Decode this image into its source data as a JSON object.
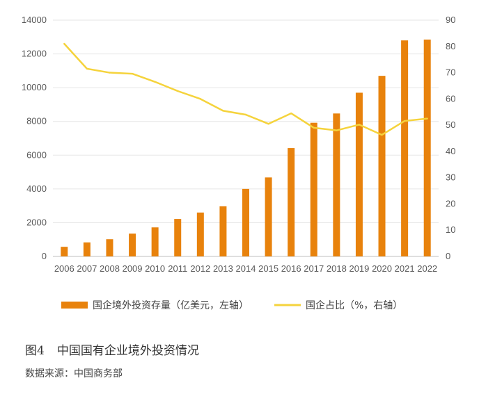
{
  "chart_data": {
    "type": "bar",
    "categories": [
      "2006",
      "2007",
      "2008",
      "2009",
      "2010",
      "2011",
      "2012",
      "2013",
      "2014",
      "2015",
      "2016",
      "2017",
      "2018",
      "2019",
      "2020",
      "2021",
      "2022"
    ],
    "series": [
      {
        "name": "国企境外投资存量（亿美元，左轴）",
        "type": "bar",
        "axis": "left",
        "color": "#E8820C",
        "values": [
          570,
          830,
          1020,
          1350,
          1720,
          2220,
          2600,
          2970,
          4000,
          4680,
          6420,
          7920,
          8470,
          9700,
          10700,
          12800,
          12850
        ]
      },
      {
        "name": "国企占比（%，右轴）",
        "type": "line",
        "axis": "right",
        "color": "#F5D33C",
        "values": [
          81,
          71.5,
          70,
          69.6,
          66.5,
          63,
          60,
          55.5,
          54,
          50.5,
          54.5,
          49,
          48,
          50.2,
          46.3,
          51.6,
          52.5
        ]
      }
    ],
    "y_left": {
      "min": 0,
      "max": 14000,
      "ticks": [
        0,
        2000,
        4000,
        6000,
        8000,
        10000,
        12000,
        14000
      ]
    },
    "y_right": {
      "min": 0,
      "max": 90,
      "ticks": [
        0,
        10,
        20,
        30,
        40,
        50,
        60,
        70,
        80,
        90
      ]
    },
    "grid": true,
    "legend_position": "bottom"
  },
  "caption": {
    "figure_number": "图4",
    "title": "中国国有企业境外投资情况"
  },
  "source": "数据来源：中国商务部"
}
